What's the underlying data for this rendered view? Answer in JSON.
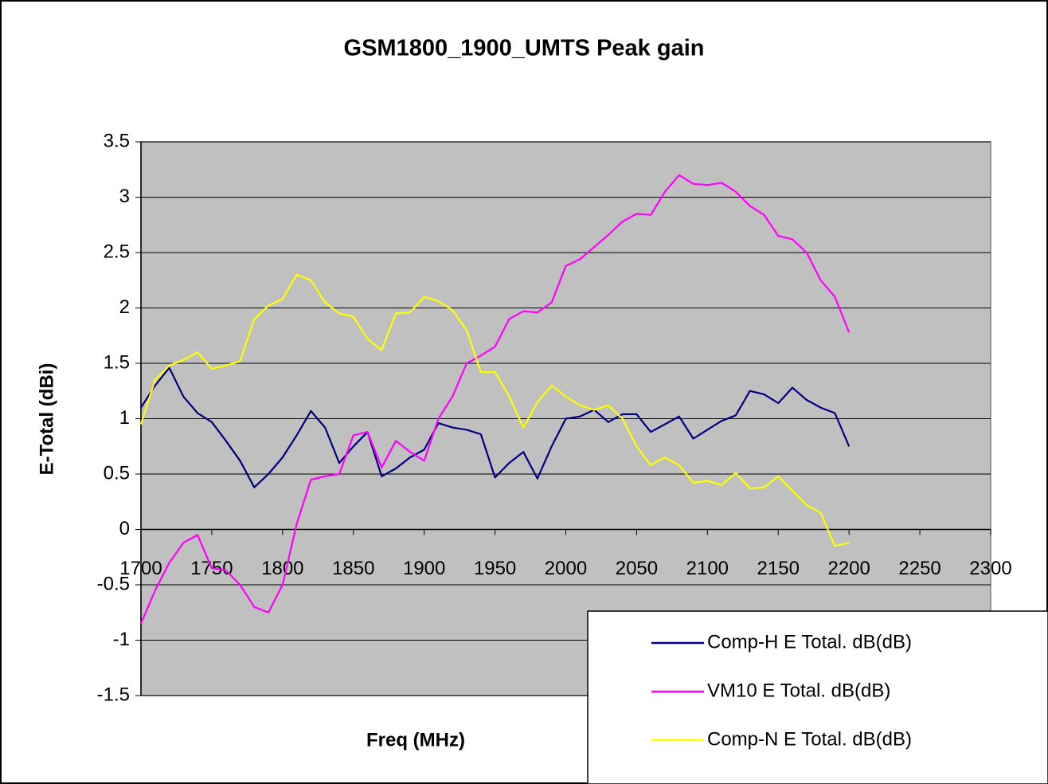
{
  "chart_data": {
    "type": "line",
    "title": "GSM1800_1900_UMTS Peak gain",
    "x_label": "Freq (MHz)",
    "y_label": "E-Total (dBi)",
    "x": [
      1700,
      1710,
      1720,
      1730,
      1740,
      1750,
      1760,
      1770,
      1780,
      1790,
      1800,
      1810,
      1820,
      1830,
      1840,
      1850,
      1860,
      1870,
      1880,
      1890,
      1900,
      1910,
      1920,
      1930,
      1940,
      1950,
      1960,
      1970,
      1980,
      1990,
      2000,
      2010,
      2020,
      2030,
      2040,
      2050,
      2060,
      2070,
      2080,
      2090,
      2100,
      2110,
      2120,
      2130,
      2140,
      2150,
      2160,
      2170,
      2180,
      2190,
      2200
    ],
    "series": [
      {
        "name": "Comp-H E Total. dB(dB)",
        "color": "#000080",
        "values": [
          1.1,
          1.3,
          1.46,
          1.2,
          1.05,
          0.97,
          0.8,
          0.62,
          0.38,
          0.5,
          0.65,
          0.85,
          1.07,
          0.92,
          0.6,
          0.75,
          0.88,
          0.48,
          0.55,
          0.65,
          0.72,
          0.96,
          0.92,
          0.9,
          0.86,
          0.47,
          0.6,
          0.7,
          0.46,
          0.75,
          1.0,
          1.02,
          1.08,
          0.97,
          1.04,
          1.04,
          0.88,
          0.95,
          1.02,
          0.82,
          0.9,
          0.98,
          1.03,
          1.25,
          1.22,
          1.14,
          1.28,
          1.17,
          1.1,
          1.05,
          0.75
        ]
      },
      {
        "name": "VM10 E Total. dB(dB)",
        "color": "#ff00ff",
        "values": [
          -0.85,
          -0.55,
          -0.3,
          -0.12,
          -0.05,
          -0.35,
          -0.37,
          -0.5,
          -0.7,
          -0.75,
          -0.5,
          0.05,
          0.45,
          0.48,
          0.5,
          0.85,
          0.88,
          0.56,
          0.8,
          0.7,
          0.62,
          1.0,
          1.2,
          1.5,
          1.57,
          1.65,
          1.9,
          1.97,
          1.96,
          2.05,
          2.38,
          2.44,
          2.55,
          2.66,
          2.78,
          2.85,
          2.84,
          3.05,
          3.2,
          3.12,
          3.11,
          3.13,
          3.05,
          2.92,
          2.84,
          2.65,
          2.62,
          2.5,
          2.25,
          2.1,
          1.78
        ]
      },
      {
        "name": "Comp-N E Total. dB(dB)",
        "color": "#ffff00",
        "values": [
          0.95,
          1.35,
          1.48,
          1.53,
          1.6,
          1.45,
          1.48,
          1.52,
          1.9,
          2.02,
          2.08,
          2.3,
          2.25,
          2.05,
          1.95,
          1.92,
          1.72,
          1.62,
          1.95,
          1.96,
          2.1,
          2.06,
          1.98,
          1.8,
          1.42,
          1.42,
          1.2,
          0.92,
          1.15,
          1.3,
          1.2,
          1.12,
          1.08,
          1.12,
          1.0,
          0.75,
          0.58,
          0.65,
          0.58,
          0.42,
          0.44,
          0.4,
          0.51,
          0.37,
          0.38,
          0.48,
          0.35,
          0.22,
          0.15,
          -0.15,
          -0.12
        ]
      }
    ],
    "xlim": [
      1700,
      2300
    ],
    "xticks": [
      1700,
      1750,
      1800,
      1850,
      1900,
      1950,
      2000,
      2050,
      2100,
      2150,
      2200,
      2250,
      2300
    ],
    "ylim": [
      -1.5,
      3.5
    ],
    "yticks": [
      -1.5,
      -1,
      -0.5,
      0,
      0.5,
      1,
      1.5,
      2,
      2.5,
      3,
      3.5
    ],
    "grid": true,
    "plot_background": "#c0c0c0",
    "legend": "lower right"
  }
}
